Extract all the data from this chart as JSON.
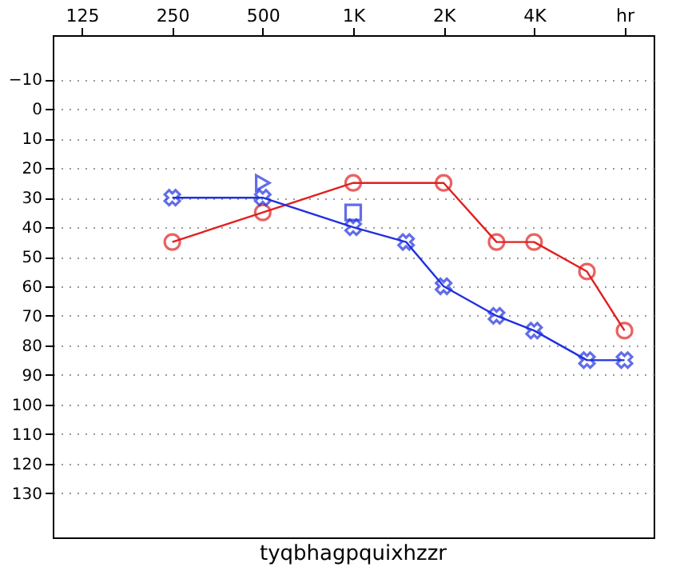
{
  "chart_data": {
    "type": "line",
    "xlabel": "tyqbhagpquixhzzr",
    "log": "x",
    "xlim": [
      100,
      10000
    ],
    "xticks": [
      125,
      250,
      500,
      {
        "value": 1000,
        "label": "1K"
      },
      {
        "value": 2000,
        "label": "2K"
      },
      {
        "value": 4000,
        "label": "4K"
      },
      {
        "value": 8000,
        "label": "hr"
      }
    ],
    "ylim": [
      145,
      -25
    ],
    "yticks": [
      -10,
      0,
      10,
      20,
      30,
      40,
      50,
      60,
      70,
      80,
      90,
      100,
      110,
      120,
      130
    ],
    "grid": "y",
    "line_style": "solid",
    "series": [
      {
        "color": "#e02020",
        "marker": "circle",
        "x": [
          250,
          500,
          1000,
          2000,
          3000,
          4000,
          6000,
          8000
        ],
        "values": [
          45,
          35,
          25,
          25,
          45,
          45,
          55,
          75
        ]
      },
      {
        "color": "#2030e0",
        "marker": "cross",
        "x": [
          250,
          500,
          1000,
          1500,
          2000,
          3000,
          4000,
          6000,
          8000
        ],
        "values": [
          30,
          30,
          40,
          45,
          60,
          70,
          75,
          85,
          85
        ]
      },
      {
        "type": "scatter",
        "color": "#2030e0",
        "marker": "triangle",
        "x": [
          500
        ],
        "values": [
          25
        ]
      },
      {
        "type": "scatter",
        "color": "#2030e0",
        "marker": "square",
        "x": [
          1000
        ],
        "values": [
          35
        ]
      }
    ]
  }
}
